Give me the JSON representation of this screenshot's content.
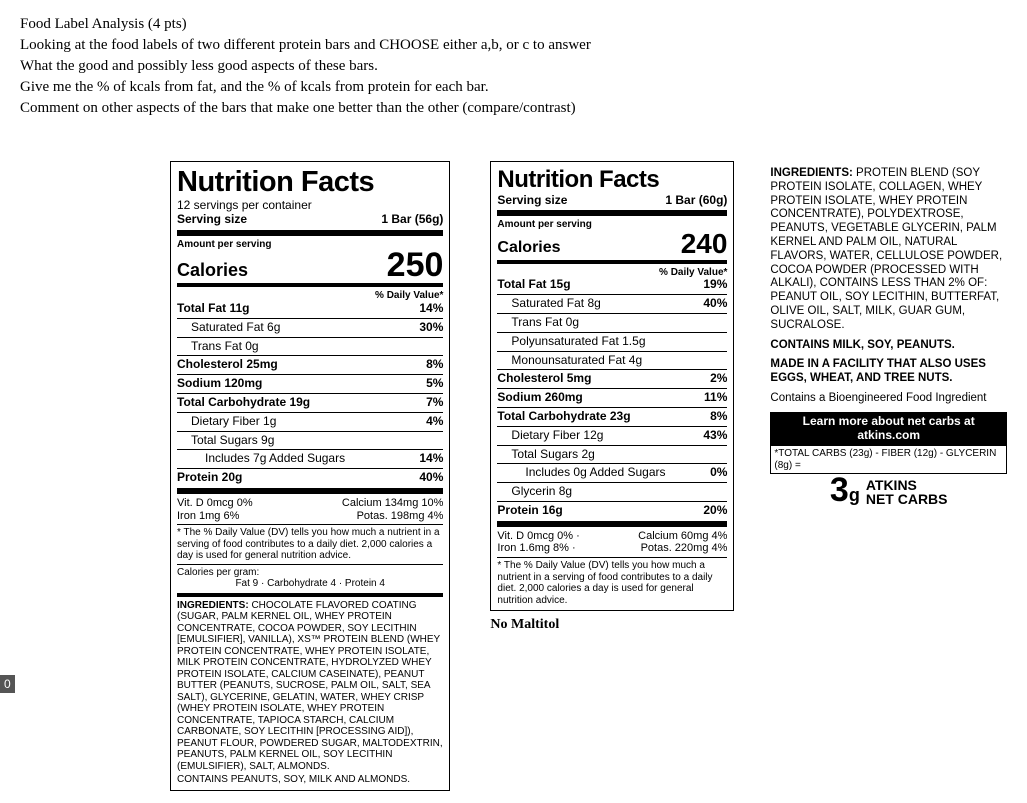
{
  "question": {
    "title": "Food Label Analysis (4 pts)",
    "line1": "Looking at the food labels of two different protein bars and CHOOSE either a,b, or c to answer",
    "line2": "What the good and possibly less good aspects of these bars.",
    "line3": "Give me the % of kcals from fat, and the % of kcals from protein for each bar.",
    "line4": "Comment on other aspects of the bars that make one better than the other (compare/contrast)"
  },
  "label1": {
    "title": "Nutrition Facts",
    "servings": "12 servings per container",
    "serv_size_l": "Serving size",
    "serv_size_r": "1 Bar (56g)",
    "amt": "Amount per serving",
    "cal_l": "Calories",
    "cal_v": "250",
    "dv_hdr": "% Daily Value*",
    "rows": [
      {
        "l": "Total Fat 11g",
        "r": "14%",
        "b": 1,
        "i": 0
      },
      {
        "l": "Saturated Fat 6g",
        "r": "30%",
        "b": 0,
        "i": 1
      },
      {
        "l": "Trans Fat 0g",
        "r": "",
        "b": 0,
        "i": 1
      },
      {
        "l": "Cholesterol 25mg",
        "r": "8%",
        "b": 1,
        "i": 0
      },
      {
        "l": "Sodium 120mg",
        "r": "5%",
        "b": 1,
        "i": 0
      },
      {
        "l": "Total Carbohydrate 19g",
        "r": "7%",
        "b": 1,
        "i": 0
      },
      {
        "l": "Dietary Fiber 1g",
        "r": "4%",
        "b": 0,
        "i": 1
      },
      {
        "l": "Total Sugars 9g",
        "r": "",
        "b": 0,
        "i": 1
      },
      {
        "l": "Includes 7g Added Sugars",
        "r": "14%",
        "b": 0,
        "i": 2
      },
      {
        "l": "Protein 20g",
        "r": "40%",
        "b": 1,
        "i": 0
      }
    ],
    "micro": [
      "Vit. D 0mcg 0%",
      "Calcium 134mg 10%",
      "Iron 1mg 6%",
      "Potas. 198mg 4%"
    ],
    "dv_foot": "* The % Daily Value (DV) tells you how much a nutrient in a serving of food contributes to a daily diet. 2,000 calories a day is used for general nutrition advice.",
    "cpg": "Calories per gram:",
    "cpg2": "Fat 9   ·   Carbohydrate 4   ·   Protein 4",
    "ing_lead": "INGREDIENTS: ",
    "ing": "CHOCOLATE FLAVORED COATING (SUGAR, PALM KERNEL OIL, WHEY PROTEIN CONCENTRATE, COCOA POWDER, SOY LECITHIN [EMULSIFIER], VANILLA), XS™ PROTEIN BLEND (WHEY PROTEIN CONCENTRATE, WHEY PROTEIN ISOLATE, MILK PROTEIN CONCENTRATE, HYDROLYZED WHEY PROTEIN ISOLATE, CALCIUM CASEINATE), PEANUT BUTTER (PEANUTS, SUCROSE, PALM OIL, SALT, SEA SALT), GLYCERINE, GELATIN, WATER, WHEY CRISP (WHEY PROTEIN ISOLATE, WHEY PROTEIN CONCENTRATE, TAPIOCA STARCH, CALCIUM CARBONATE, SOY LECITHIN [PROCESSING AID]), PEANUT FLOUR, POWDERED SUGAR, MALTODEXTRIN, PEANUTS, PALM KERNEL OIL, SOY LECITHIN (EMULSIFIER), SALT, ALMONDS.",
    "contains": "CONTAINS PEANUTS, SOY, MILK AND ALMONDS."
  },
  "label2": {
    "title": "Nutrition Facts",
    "serv_size_l": "Serving size",
    "serv_size_r": "1 Bar (60g)",
    "amt": "Amount per serving",
    "cal_l": "Calories",
    "cal_v": "240",
    "dv_hdr": "% Daily Value*",
    "rows": [
      {
        "l": "Total Fat 15g",
        "r": "19%",
        "b": 1,
        "i": 0
      },
      {
        "l": "Saturated Fat 8g",
        "r": "40%",
        "b": 0,
        "i": 1
      },
      {
        "l": "Trans Fat 0g",
        "r": "",
        "b": 0,
        "i": 1
      },
      {
        "l": "Polyunsaturated Fat 1.5g",
        "r": "",
        "b": 0,
        "i": 1
      },
      {
        "l": "Monounsaturated Fat 4g",
        "r": "",
        "b": 0,
        "i": 1
      },
      {
        "l": "Cholesterol 5mg",
        "r": "2%",
        "b": 1,
        "i": 0
      },
      {
        "l": "Sodium 260mg",
        "r": "11%",
        "b": 1,
        "i": 0
      },
      {
        "l": "Total Carbohydrate 23g",
        "r": "8%",
        "b": 1,
        "i": 0
      },
      {
        "l": "Dietary Fiber 12g",
        "r": "43%",
        "b": 0,
        "i": 1
      },
      {
        "l": "Total Sugars 2g",
        "r": "",
        "b": 0,
        "i": 1
      },
      {
        "l": "Includes 0g Added Sugars",
        "r": "0%",
        "b": 0,
        "i": 2
      },
      {
        "l": "Glycerin 8g",
        "r": "",
        "b": 0,
        "i": 1
      },
      {
        "l": "Protein 16g",
        "r": "20%",
        "b": 1,
        "i": 0
      }
    ],
    "micro": [
      "Vit. D 0mcg 0%   ·",
      "Calcium 60mg 4%",
      "Iron 1.6mg 8%   ·",
      "Potas. 220mg 4%"
    ],
    "dv_foot": "* The % Daily Value (DV) tells you how much a nutrient in a serving of food contributes to a daily diet. 2,000 calories a day is used for general nutrition advice.",
    "no_malt": "No Maltitol"
  },
  "side": {
    "ing_lead": "INGREDIENTS: ",
    "ing": "PROTEIN BLEND (SOY PROTEIN ISOLATE, COLLAGEN, WHEY PROTEIN ISOLATE, WHEY PROTEIN CONCENTRATE), POLYDEXTROSE, PEANUTS, VEGETABLE GLYCERIN, PALM KERNEL AND PALM OIL, NATURAL FLAVORS, WATER, CELLULOSE POWDER, COCOA POWDER (PROCESSED WITH ALKALI), CONTAINS LESS THAN 2% OF: PEANUT OIL, SOY LECITHIN, BUTTERFAT, OLIVE OIL, SALT, MILK, GUAR GUM, SUCRALOSE.",
    "contains": "CONTAINS MILK, SOY, PEANUTS.",
    "facility": "MADE IN A FACILITY THAT ALSO USES EGGS, WHEAT, AND TREE NUTS.",
    "bio": "Contains a Bioengineered Food Ingredient",
    "learn1": "Learn more about net carbs at",
    "learn2": "atkins.com",
    "calc": "*TOTAL CARBS (23g) - FIBER (12g) - GLYCERIN (8g) =",
    "atk_num": "3",
    "atk_g": "g",
    "atk_brand": "ATKINS",
    "atk_net": "NET CARBS"
  },
  "page_num": "0"
}
